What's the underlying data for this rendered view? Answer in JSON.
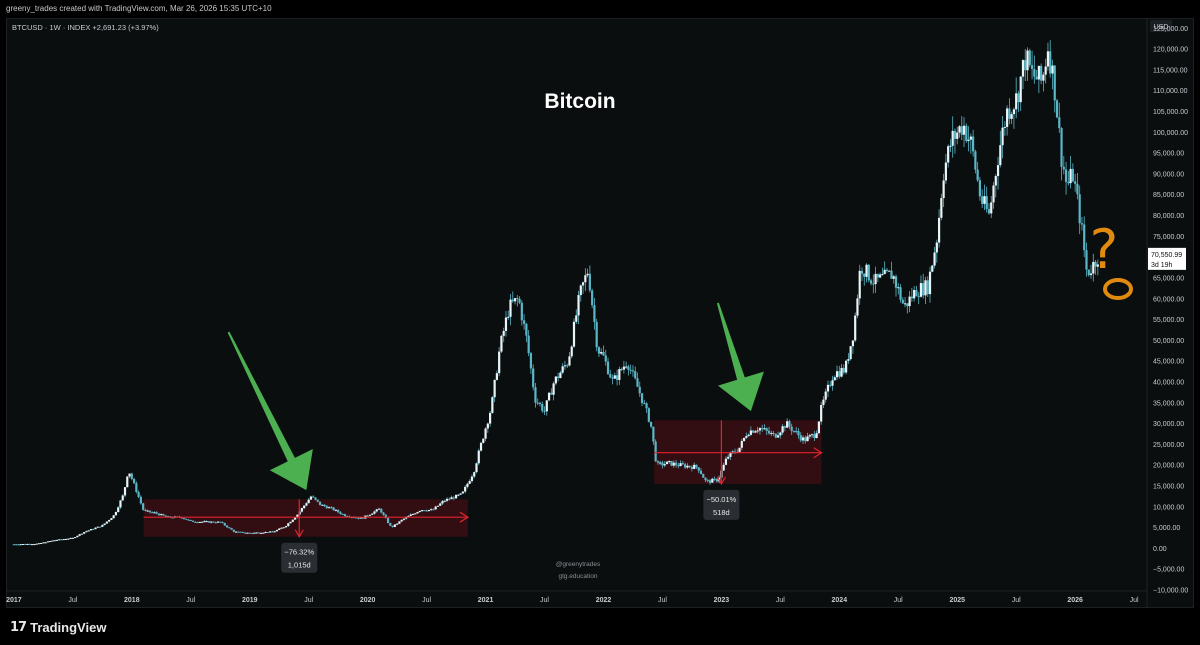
{
  "header": {
    "credit": "greeny_trades created with TradingView.com, Mar 26, 2026 15:35 UTC+10"
  },
  "footer": {
    "brand": "TradingView",
    "logo_mark": "17"
  },
  "colors": {
    "background": "#0b0e0f",
    "candle": "#e8f4f8",
    "candle_wick": "#5ab7c8",
    "box_fill": "#3a0d12",
    "measure_line": "#e0242f",
    "arrow": "#4caf50",
    "annotation": "#e08a10",
    "axis_text": "#c8ccd0"
  },
  "chart_data": {
    "type": "candlestick",
    "symbol": "BTCUSD · 1W · INDEX",
    "change": "+2,691.23 (+3.97%)",
    "title": "Bitcoin",
    "currency": "USD",
    "y_scale": "linear",
    "ylim": [
      -10000,
      127000
    ],
    "xlim": [
      2016.95,
      2026.55
    ],
    "grid": false,
    "y_ticks": [
      {
        "v": 125000,
        "label": "125,000.00"
      },
      {
        "v": 120000,
        "label": "120,000.00"
      },
      {
        "v": 115000,
        "label": "115,000.00"
      },
      {
        "v": 110000,
        "label": "110,000.00"
      },
      {
        "v": 105000,
        "label": "105,000.00"
      },
      {
        "v": 100000,
        "label": "100,000.00"
      },
      {
        "v": 95000,
        "label": "95,000.00"
      },
      {
        "v": 90000,
        "label": "90,000.00"
      },
      {
        "v": 85000,
        "label": "85,000.00"
      },
      {
        "v": 80000,
        "label": "80,000.00"
      },
      {
        "v": 75000,
        "label": "75,000.00"
      },
      {
        "v": 65000,
        "label": "65,000.00"
      },
      {
        "v": 60000,
        "label": "60,000.00"
      },
      {
        "v": 55000,
        "label": "55,000.00"
      },
      {
        "v": 50000,
        "label": "50,000.00"
      },
      {
        "v": 45000,
        "label": "45,000.00"
      },
      {
        "v": 40000,
        "label": "40,000.00"
      },
      {
        "v": 35000,
        "label": "35,000.00"
      },
      {
        "v": 30000,
        "label": "30,000.00"
      },
      {
        "v": 25000,
        "label": "25,000.00"
      },
      {
        "v": 20000,
        "label": "20,000.00"
      },
      {
        "v": 15000,
        "label": "15,000.00"
      },
      {
        "v": 10000,
        "label": "10,000.00"
      },
      {
        "v": 5000,
        "label": "5,000.00"
      },
      {
        "v": 0,
        "label": "0.00"
      },
      {
        "v": -5000,
        "label": "−5,000.00"
      },
      {
        "v": -10000,
        "label": "−10,000.00"
      }
    ],
    "x_ticks": [
      {
        "v": 2017.0,
        "label": "2017"
      },
      {
        "v": 2017.5,
        "label": "Jul"
      },
      {
        "v": 2018.0,
        "label": "2018"
      },
      {
        "v": 2018.5,
        "label": "Jul"
      },
      {
        "v": 2019.0,
        "label": "2019"
      },
      {
        "v": 2019.5,
        "label": "Jul"
      },
      {
        "v": 2020.0,
        "label": "2020"
      },
      {
        "v": 2020.5,
        "label": "Jul"
      },
      {
        "v": 2021.0,
        "label": "2021"
      },
      {
        "v": 2021.5,
        "label": "Jul"
      },
      {
        "v": 2022.0,
        "label": "2022"
      },
      {
        "v": 2022.5,
        "label": "Jul"
      },
      {
        "v": 2023.0,
        "label": "2023"
      },
      {
        "v": 2023.5,
        "label": "Jul"
      },
      {
        "v": 2024.0,
        "label": "2024"
      },
      {
        "v": 2024.5,
        "label": "Jul"
      },
      {
        "v": 2025.0,
        "label": "2025"
      },
      {
        "v": 2025.5,
        "label": "Jul"
      },
      {
        "v": 2026.0,
        "label": "2026"
      },
      {
        "v": 2026.5,
        "label": "Jul"
      }
    ],
    "price_points": [
      [
        2017.0,
        1000
      ],
      [
        2017.2,
        1100
      ],
      [
        2017.35,
        2000
      ],
      [
        2017.5,
        2500
      ],
      [
        2017.6,
        4000
      ],
      [
        2017.75,
        5500
      ],
      [
        2017.85,
        8000
      ],
      [
        2017.93,
        13000
      ],
      [
        2017.97,
        19000
      ],
      [
        2018.05,
        13000
      ],
      [
        2018.1,
        9000
      ],
      [
        2018.2,
        8500
      ],
      [
        2018.3,
        7500
      ],
      [
        2018.42,
        7500
      ],
      [
        2018.5,
        6500
      ],
      [
        2018.6,
        6400
      ],
      [
        2018.75,
        6300
      ],
      [
        2018.87,
        4000
      ],
      [
        2019.0,
        3700
      ],
      [
        2019.2,
        4000
      ],
      [
        2019.3,
        5300
      ],
      [
        2019.4,
        8000
      ],
      [
        2019.48,
        11000
      ],
      [
        2019.52,
        12500
      ],
      [
        2019.6,
        10500
      ],
      [
        2019.7,
        9500
      ],
      [
        2019.8,
        8000
      ],
      [
        2019.95,
        7200
      ],
      [
        2020.1,
        9500
      ],
      [
        2020.2,
        5000
      ],
      [
        2020.3,
        7000
      ],
      [
        2020.45,
        9300
      ],
      [
        2020.55,
        9200
      ],
      [
        2020.65,
        11500
      ],
      [
        2020.8,
        13000
      ],
      [
        2020.9,
        18500
      ],
      [
        2021.0,
        29000
      ],
      [
        2021.05,
        34000
      ],
      [
        2021.12,
        48000
      ],
      [
        2021.2,
        58000
      ],
      [
        2021.28,
        60000
      ],
      [
        2021.35,
        50000
      ],
      [
        2021.42,
        36000
      ],
      [
        2021.5,
        33000
      ],
      [
        2021.58,
        40000
      ],
      [
        2021.7,
        45000
      ],
      [
        2021.8,
        61000
      ],
      [
        2021.87,
        67000
      ],
      [
        2021.95,
        48000
      ],
      [
        2022.0,
        46000
      ],
      [
        2022.08,
        40000
      ],
      [
        2022.2,
        45000
      ],
      [
        2022.3,
        38000
      ],
      [
        2022.4,
        30000
      ],
      [
        2022.45,
        20000
      ],
      [
        2022.55,
        20500
      ],
      [
        2022.65,
        20000
      ],
      [
        2022.8,
        19500
      ],
      [
        2022.87,
        16000
      ],
      [
        2022.97,
        16500
      ],
      [
        2023.05,
        22000
      ],
      [
        2023.15,
        24000
      ],
      [
        2023.22,
        28000
      ],
      [
        2023.32,
        29000
      ],
      [
        2023.45,
        27000
      ],
      [
        2023.55,
        30000
      ],
      [
        2023.7,
        26000
      ],
      [
        2023.8,
        27500
      ],
      [
        2023.85,
        34000
      ],
      [
        2023.95,
        42000
      ],
      [
        2024.05,
        43000
      ],
      [
        2024.12,
        52000
      ],
      [
        2024.18,
        68000
      ],
      [
        2024.3,
        64000
      ],
      [
        2024.45,
        66000
      ],
      [
        2024.55,
        58000
      ],
      [
        2024.65,
        62000
      ],
      [
        2024.75,
        63000
      ],
      [
        2024.83,
        75000
      ],
      [
        2024.88,
        90000
      ],
      [
        2024.95,
        98000
      ],
      [
        2025.05,
        102000
      ],
      [
        2025.12,
        97000
      ],
      [
        2025.2,
        84000
      ],
      [
        2025.27,
        80000
      ],
      [
        2025.35,
        95000
      ],
      [
        2025.42,
        105000
      ],
      [
        2025.5,
        108000
      ],
      [
        2025.58,
        118000
      ],
      [
        2025.63,
        114000
      ],
      [
        2025.72,
        112000
      ],
      [
        2025.77,
        121000
      ],
      [
        2025.83,
        110000
      ],
      [
        2025.88,
        95000
      ],
      [
        2025.93,
        87000
      ],
      [
        2025.98,
        90000
      ],
      [
        2026.05,
        78000
      ],
      [
        2026.1,
        66000
      ],
      [
        2026.15,
        68000
      ],
      [
        2026.2,
        70550
      ]
    ],
    "last_price": {
      "label": "70,550.99",
      "countdown": "3d 19h",
      "v": 70550.99
    },
    "ranges": [
      {
        "x0": 2018.1,
        "x1": 2020.85,
        "y_top": 11800,
        "y_bot": 2800,
        "mid": 7500,
        "drop_x": 2019.42,
        "label": "−76.32%",
        "bars": "1,015d"
      },
      {
        "x0": 2022.43,
        "x1": 2023.85,
        "y_top": 30800,
        "y_bot": 15500,
        "mid": 23000,
        "drop_x": 2023.0,
        "label": "−50.01%",
        "bars": "518d"
      }
    ],
    "arrows": [
      {
        "from": [
          2018.82,
          52000
        ],
        "to": [
          2019.48,
          14000
        ]
      },
      {
        "from": [
          2022.97,
          59000
        ],
        "to": [
          2023.25,
          33000
        ]
      }
    ],
    "watermark": [
      "@greenytrades",
      "gtg.education"
    ],
    "annotation_mark": "?"
  }
}
